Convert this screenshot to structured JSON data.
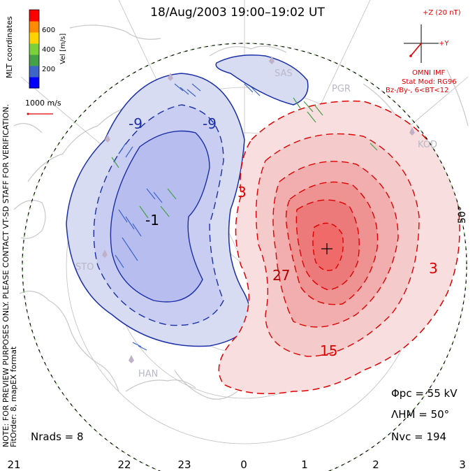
{
  "title": "18/Aug/2003 19:00–19:02 UT",
  "side_note_1": "NOTE: FOR PREVIEW PURPOSES ONLY. PLEASE CONTACT VT-SD STAFF FOR VERIFICATION.",
  "side_note_2": "FitOrder: 8, mapEX format",
  "mlt_label": "MLT coordinates",
  "colorbar": {
    "title": "Vel [m/s]",
    "ticks": [
      "600",
      "400",
      "200"
    ],
    "colors": [
      "#0000ff",
      "#3e66c8",
      "#46a046",
      "#7cd13a",
      "#ffd400",
      "#ff8a00",
      "#ff0000"
    ]
  },
  "scale_label": "1000 m/s",
  "imf": {
    "z_label": "+Z (20 nT)",
    "y_label": "+Y",
    "source": "OMNI IMF",
    "model": "Stat Mod: RG96",
    "condition": "Bz-/By-, 6<BT<12"
  },
  "stats": {
    "phi": "Φpc = 55 kV",
    "lambda": "ΛHM = 50°",
    "nvc": "Nvc = 194",
    "nrads": "Nrads = 8"
  },
  "lat_label": "50°",
  "mlt_ticks": [
    "21",
    "22",
    "23",
    "0",
    "1",
    "2",
    "3"
  ],
  "stations": [
    "SAS",
    "PGR",
    "KOD",
    "STO",
    "HAN"
  ],
  "contour_labels": {
    "neg_outer": "-9",
    "neg_outer_2": "-9",
    "neg_inner": "-1",
    "pos_3": "3",
    "pos_3b": "3",
    "pos_27": "27",
    "pos_15": "15"
  },
  "colors": {
    "negative_line": "#1a2fa8",
    "negative_fill": "#d8dcf2",
    "negative_core": "#b8bdf0",
    "positive_line": "#e00000",
    "positive_fill": "#f8dede",
    "positive_core": "#f06a6a"
  }
}
